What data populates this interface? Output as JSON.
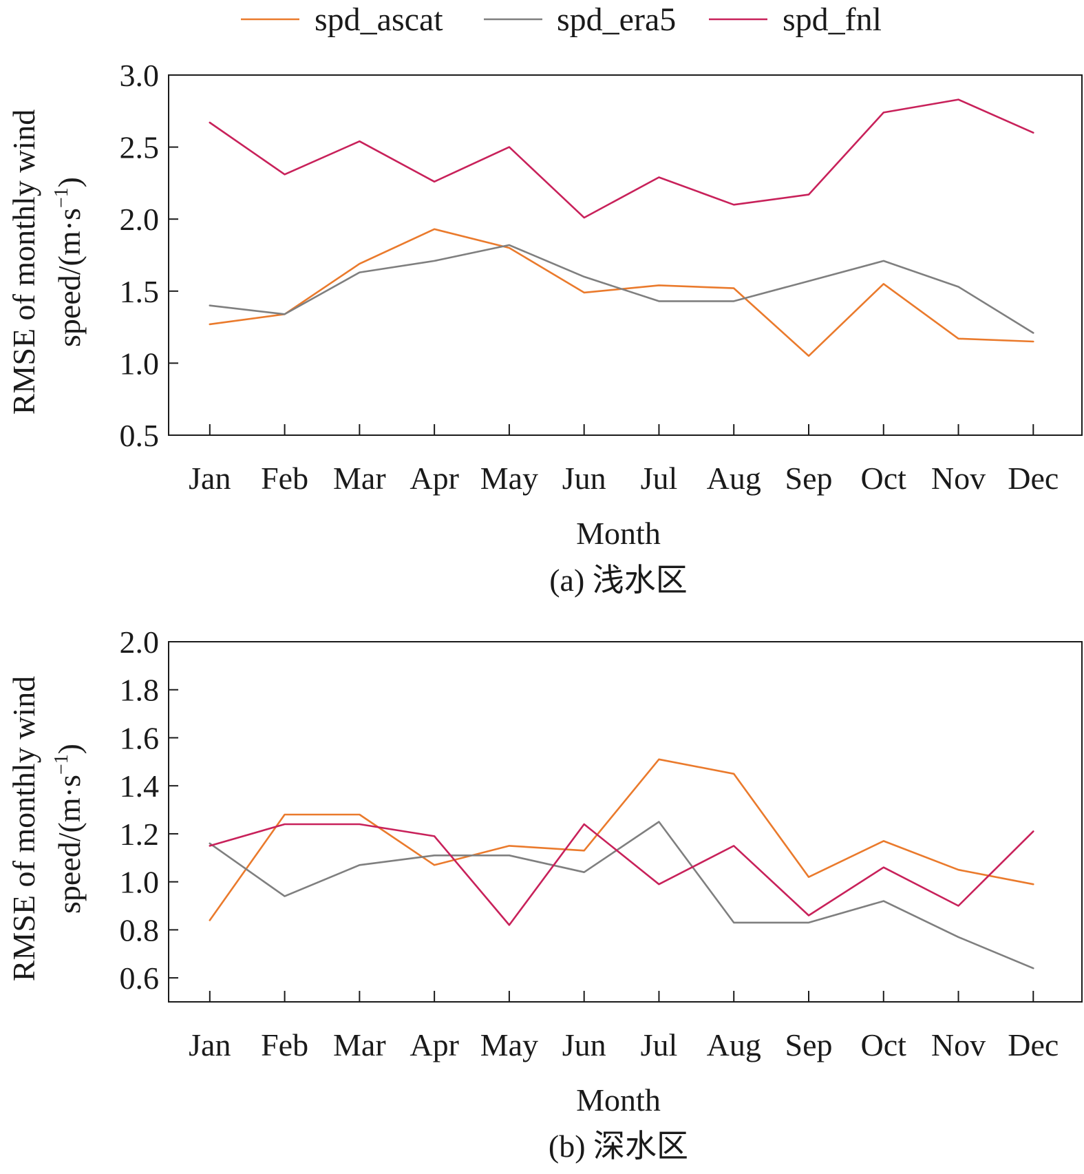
{
  "legend": [
    {
      "name": "spd_ascat",
      "color": "#ea7a2c"
    },
    {
      "name": "spd_era5",
      "color": "#7f7f7f"
    },
    {
      "name": "spd_fnl",
      "color": "#c8215a"
    }
  ],
  "chart_data": [
    {
      "type": "line",
      "caption": "(a) 浅水区",
      "xlabel": "Month",
      "ylabel_line1": "RMSE of monthly wind",
      "ylabel_line2": "speed/(m·s",
      "ylabel_sup": "−1",
      "ylabel_close": ")",
      "ylim": [
        0.5,
        3.0
      ],
      "yticks": [
        0.5,
        1.0,
        1.5,
        2.0,
        2.5,
        3.0
      ],
      "ytick_labels": [
        "0.5",
        "1.0",
        "1.5",
        "2.0",
        "2.5",
        "3.0"
      ],
      "categories": [
        "Jan",
        "Feb",
        "Mar",
        "Apr",
        "May",
        "Jun",
        "Jul",
        "Aug",
        "Sep",
        "Oct",
        "Nov",
        "Dec"
      ],
      "series": [
        {
          "name": "spd_ascat",
          "color": "#ea7a2c",
          "values": [
            1.27,
            1.34,
            1.69,
            1.93,
            1.8,
            1.49,
            1.54,
            1.52,
            1.05,
            1.55,
            1.17,
            1.15
          ]
        },
        {
          "name": "spd_era5",
          "color": "#7f7f7f",
          "values": [
            1.4,
            1.34,
            1.63,
            1.71,
            1.82,
            1.6,
            1.43,
            1.43,
            1.57,
            1.71,
            1.53,
            1.21
          ]
        },
        {
          "name": "spd_fnl",
          "color": "#c8215a",
          "values": [
            2.67,
            2.31,
            2.54,
            2.26,
            2.5,
            2.01,
            2.29,
            2.1,
            2.17,
            2.74,
            2.83,
            2.6
          ]
        }
      ]
    },
    {
      "type": "line",
      "caption": "(b) 深水区",
      "xlabel": "Month",
      "ylabel_line1": "RMSE of monthly wind",
      "ylabel_line2": "speed/(m·s",
      "ylabel_sup": "−1",
      "ylabel_close": ")",
      "ylim": [
        0.5,
        2.0
      ],
      "yticks": [
        0.6,
        0.8,
        1.0,
        1.2,
        1.4,
        1.6,
        1.8,
        2.0
      ],
      "ytick_labels": [
        "0.6",
        "0.8",
        "1.0",
        "1.2",
        "1.4",
        "1.6",
        "1.8",
        "2.0"
      ],
      "categories": [
        "Jan",
        "Feb",
        "Mar",
        "Apr",
        "May",
        "Jun",
        "Jul",
        "Aug",
        "Sep",
        "Oct",
        "Nov",
        "Dec"
      ],
      "series": [
        {
          "name": "spd_ascat",
          "color": "#ea7a2c",
          "values": [
            0.84,
            1.28,
            1.28,
            1.07,
            1.15,
            1.13,
            1.51,
            1.45,
            1.02,
            1.17,
            1.05,
            0.99
          ]
        },
        {
          "name": "spd_era5",
          "color": "#7f7f7f",
          "values": [
            1.16,
            0.94,
            1.07,
            1.11,
            1.11,
            1.04,
            1.25,
            0.83,
            0.83,
            0.92,
            0.77,
            0.64
          ]
        },
        {
          "name": "spd_fnl",
          "color": "#c8215a",
          "values": [
            1.15,
            1.24,
            1.24,
            1.19,
            0.82,
            1.24,
            0.99,
            1.15,
            0.86,
            1.06,
            0.9,
            1.21
          ]
        }
      ]
    }
  ]
}
